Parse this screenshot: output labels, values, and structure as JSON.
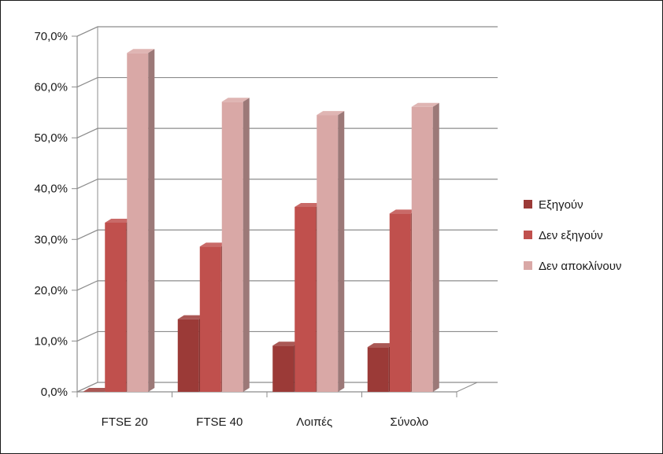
{
  "chart_data": {
    "type": "bar",
    "three_d": true,
    "categories": [
      "FTSE 20",
      "FTSE 40",
      "Λοιπές",
      "Σύνολο"
    ],
    "series": [
      {
        "name": "Εξηγούν",
        "values": [
          0.0,
          14.3,
          9.1,
          8.8
        ],
        "color": "#9b3a37"
      },
      {
        "name": "Δεν εξηγούν",
        "values": [
          33.3,
          28.6,
          36.4,
          35.1
        ],
        "color": "#c0504d"
      },
      {
        "name": "Δεν αποκλίνουν",
        "values": [
          66.7,
          57.1,
          54.5,
          56.1
        ],
        "color": "#d9a8a6"
      }
    ],
    "ylim": [
      0,
      70
    ],
    "yticks": [
      "0,0%",
      "10,0%",
      "20,0%",
      "30,0%",
      "40,0%",
      "50,0%",
      "60,0%",
      "70,0%"
    ],
    "grid": true,
    "legend_position": "right",
    "title": "",
    "xlabel": "",
    "ylabel": ""
  }
}
